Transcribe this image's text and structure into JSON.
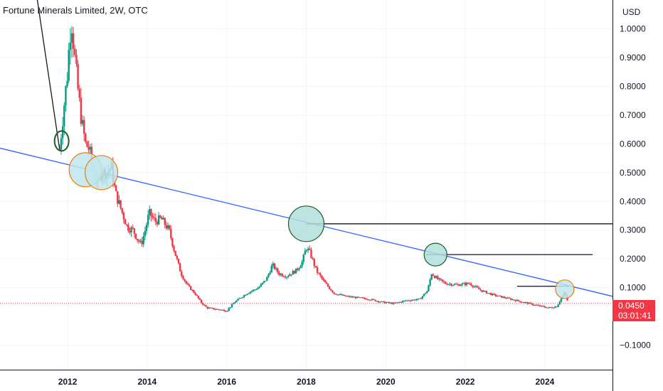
{
  "header": {
    "title": "Fortune Minerals Limited, 2W, OTC",
    "currency": "USD"
  },
  "price_badge": {
    "price": "0.0450",
    "countdown": "03:01:41"
  },
  "colors": {
    "up": "#089981",
    "down": "#f23645",
    "trendline": "#2962ff",
    "hline": "#131722",
    "grid": "#f0f3fa",
    "axis": "#131722",
    "last_price_line": "#f23645",
    "circle_teal_fill": "#b2dfdb",
    "circle_teal_stroke": "#1b5e20",
    "circle_orange_fill": "#bfe6ee",
    "circle_orange_stroke": "#f57c00"
  },
  "chart_data": {
    "type": "candlestick",
    "title": "Fortune Minerals Limited, 2W, OTC",
    "x_ticks": [
      "2012",
      "2014",
      "2016",
      "2018",
      "2020",
      "2022",
      "2024"
    ],
    "y_ticks": [
      "1.0000",
      "0.9000",
      "0.8000",
      "0.7000",
      "0.6000",
      "0.5000",
      "0.4000",
      "0.3000",
      "0.2000",
      "0.1000",
      "−0.1000"
    ],
    "xlim": [
      2010.3,
      2025.7
    ],
    "ylim": [
      -0.185,
      1.1
    ],
    "series": [
      {
        "kind": "price_path",
        "points": [
          [
            2011.8,
            0.58
          ],
          [
            2011.9,
            0.72
          ],
          [
            2012.0,
            0.85
          ],
          [
            2012.05,
            0.97
          ],
          [
            2012.1,
            1.03
          ],
          [
            2012.18,
            0.9
          ],
          [
            2012.25,
            0.8
          ],
          [
            2012.35,
            0.68
          ],
          [
            2012.45,
            0.6
          ],
          [
            2012.55,
            0.58
          ],
          [
            2012.65,
            0.5
          ],
          [
            2012.75,
            0.47
          ],
          [
            2012.85,
            0.5
          ],
          [
            2013.0,
            0.5
          ],
          [
            2013.1,
            0.52
          ],
          [
            2013.2,
            0.43
          ],
          [
            2013.35,
            0.37
          ],
          [
            2013.5,
            0.31
          ],
          [
            2013.65,
            0.3
          ],
          [
            2013.75,
            0.27
          ],
          [
            2013.85,
            0.25
          ],
          [
            2013.95,
            0.3
          ],
          [
            2014.05,
            0.36
          ],
          [
            2014.2,
            0.33
          ],
          [
            2014.35,
            0.34
          ],
          [
            2014.55,
            0.3
          ],
          [
            2014.7,
            0.22
          ],
          [
            2014.85,
            0.15
          ],
          [
            2015.0,
            0.11
          ],
          [
            2015.2,
            0.08
          ],
          [
            2015.35,
            0.05
          ],
          [
            2015.5,
            0.03
          ],
          [
            2015.75,
            0.025
          ],
          [
            2016.0,
            0.02
          ],
          [
            2016.2,
            0.05
          ],
          [
            2016.5,
            0.08
          ],
          [
            2016.8,
            0.1
          ],
          [
            2017.0,
            0.13
          ],
          [
            2017.15,
            0.18
          ],
          [
            2017.3,
            0.15
          ],
          [
            2017.5,
            0.14
          ],
          [
            2017.75,
            0.16
          ],
          [
            2017.9,
            0.19
          ],
          [
            2018.0,
            0.24
          ],
          [
            2018.1,
            0.22
          ],
          [
            2018.25,
            0.16
          ],
          [
            2018.45,
            0.12
          ],
          [
            2018.7,
            0.08
          ],
          [
            2019.0,
            0.07
          ],
          [
            2019.3,
            0.065
          ],
          [
            2019.6,
            0.06
          ],
          [
            2019.9,
            0.05
          ],
          [
            2020.2,
            0.045
          ],
          [
            2020.5,
            0.055
          ],
          [
            2020.85,
            0.06
          ],
          [
            2021.05,
            0.09
          ],
          [
            2021.15,
            0.15
          ],
          [
            2021.3,
            0.13
          ],
          [
            2021.5,
            0.115
          ],
          [
            2021.8,
            0.11
          ],
          [
            2022.1,
            0.115
          ],
          [
            2022.4,
            0.09
          ],
          [
            2022.7,
            0.075
          ],
          [
            2023.0,
            0.065
          ],
          [
            2023.3,
            0.055
          ],
          [
            2023.6,
            0.045
          ],
          [
            2023.9,
            0.035
          ],
          [
            2024.1,
            0.03
          ],
          [
            2024.3,
            0.035
          ],
          [
            2024.4,
            0.06
          ],
          [
            2024.5,
            0.085
          ],
          [
            2024.55,
            0.06
          ],
          [
            2024.6,
            0.045
          ]
        ]
      }
    ],
    "trendline": {
      "from": [
        2010.3,
        0.585
      ],
      "to": [
        2025.7,
        0.07
      ]
    },
    "arrow_line": {
      "from": [
        2011.13,
        1.2
      ],
      "to": [
        2011.8,
        0.58
      ]
    },
    "horizontal_lines": [
      {
        "y": 0.322,
        "x_start": 2018.0,
        "x_end": 2025.7
      },
      {
        "y": 0.215,
        "x_start": 2021.0,
        "x_end": 2025.2
      },
      {
        "y": 0.105,
        "x_start": 2023.3,
        "x_end": 2024.6
      }
    ],
    "circles": [
      {
        "x": 2011.85,
        "y": 0.61,
        "style": "teal-outline"
      },
      {
        "x": 2012.45,
        "y": 0.51,
        "style": "orange-large"
      },
      {
        "x": 2012.85,
        "y": 0.5,
        "style": "orange-large"
      },
      {
        "x": 2018.0,
        "y": 0.322,
        "style": "teal-large"
      },
      {
        "x": 2021.25,
        "y": 0.215,
        "style": "teal-medium"
      },
      {
        "x": 2024.5,
        "y": 0.095,
        "style": "orange-small"
      }
    ],
    "last_price": 0.045,
    "grid": true
  }
}
